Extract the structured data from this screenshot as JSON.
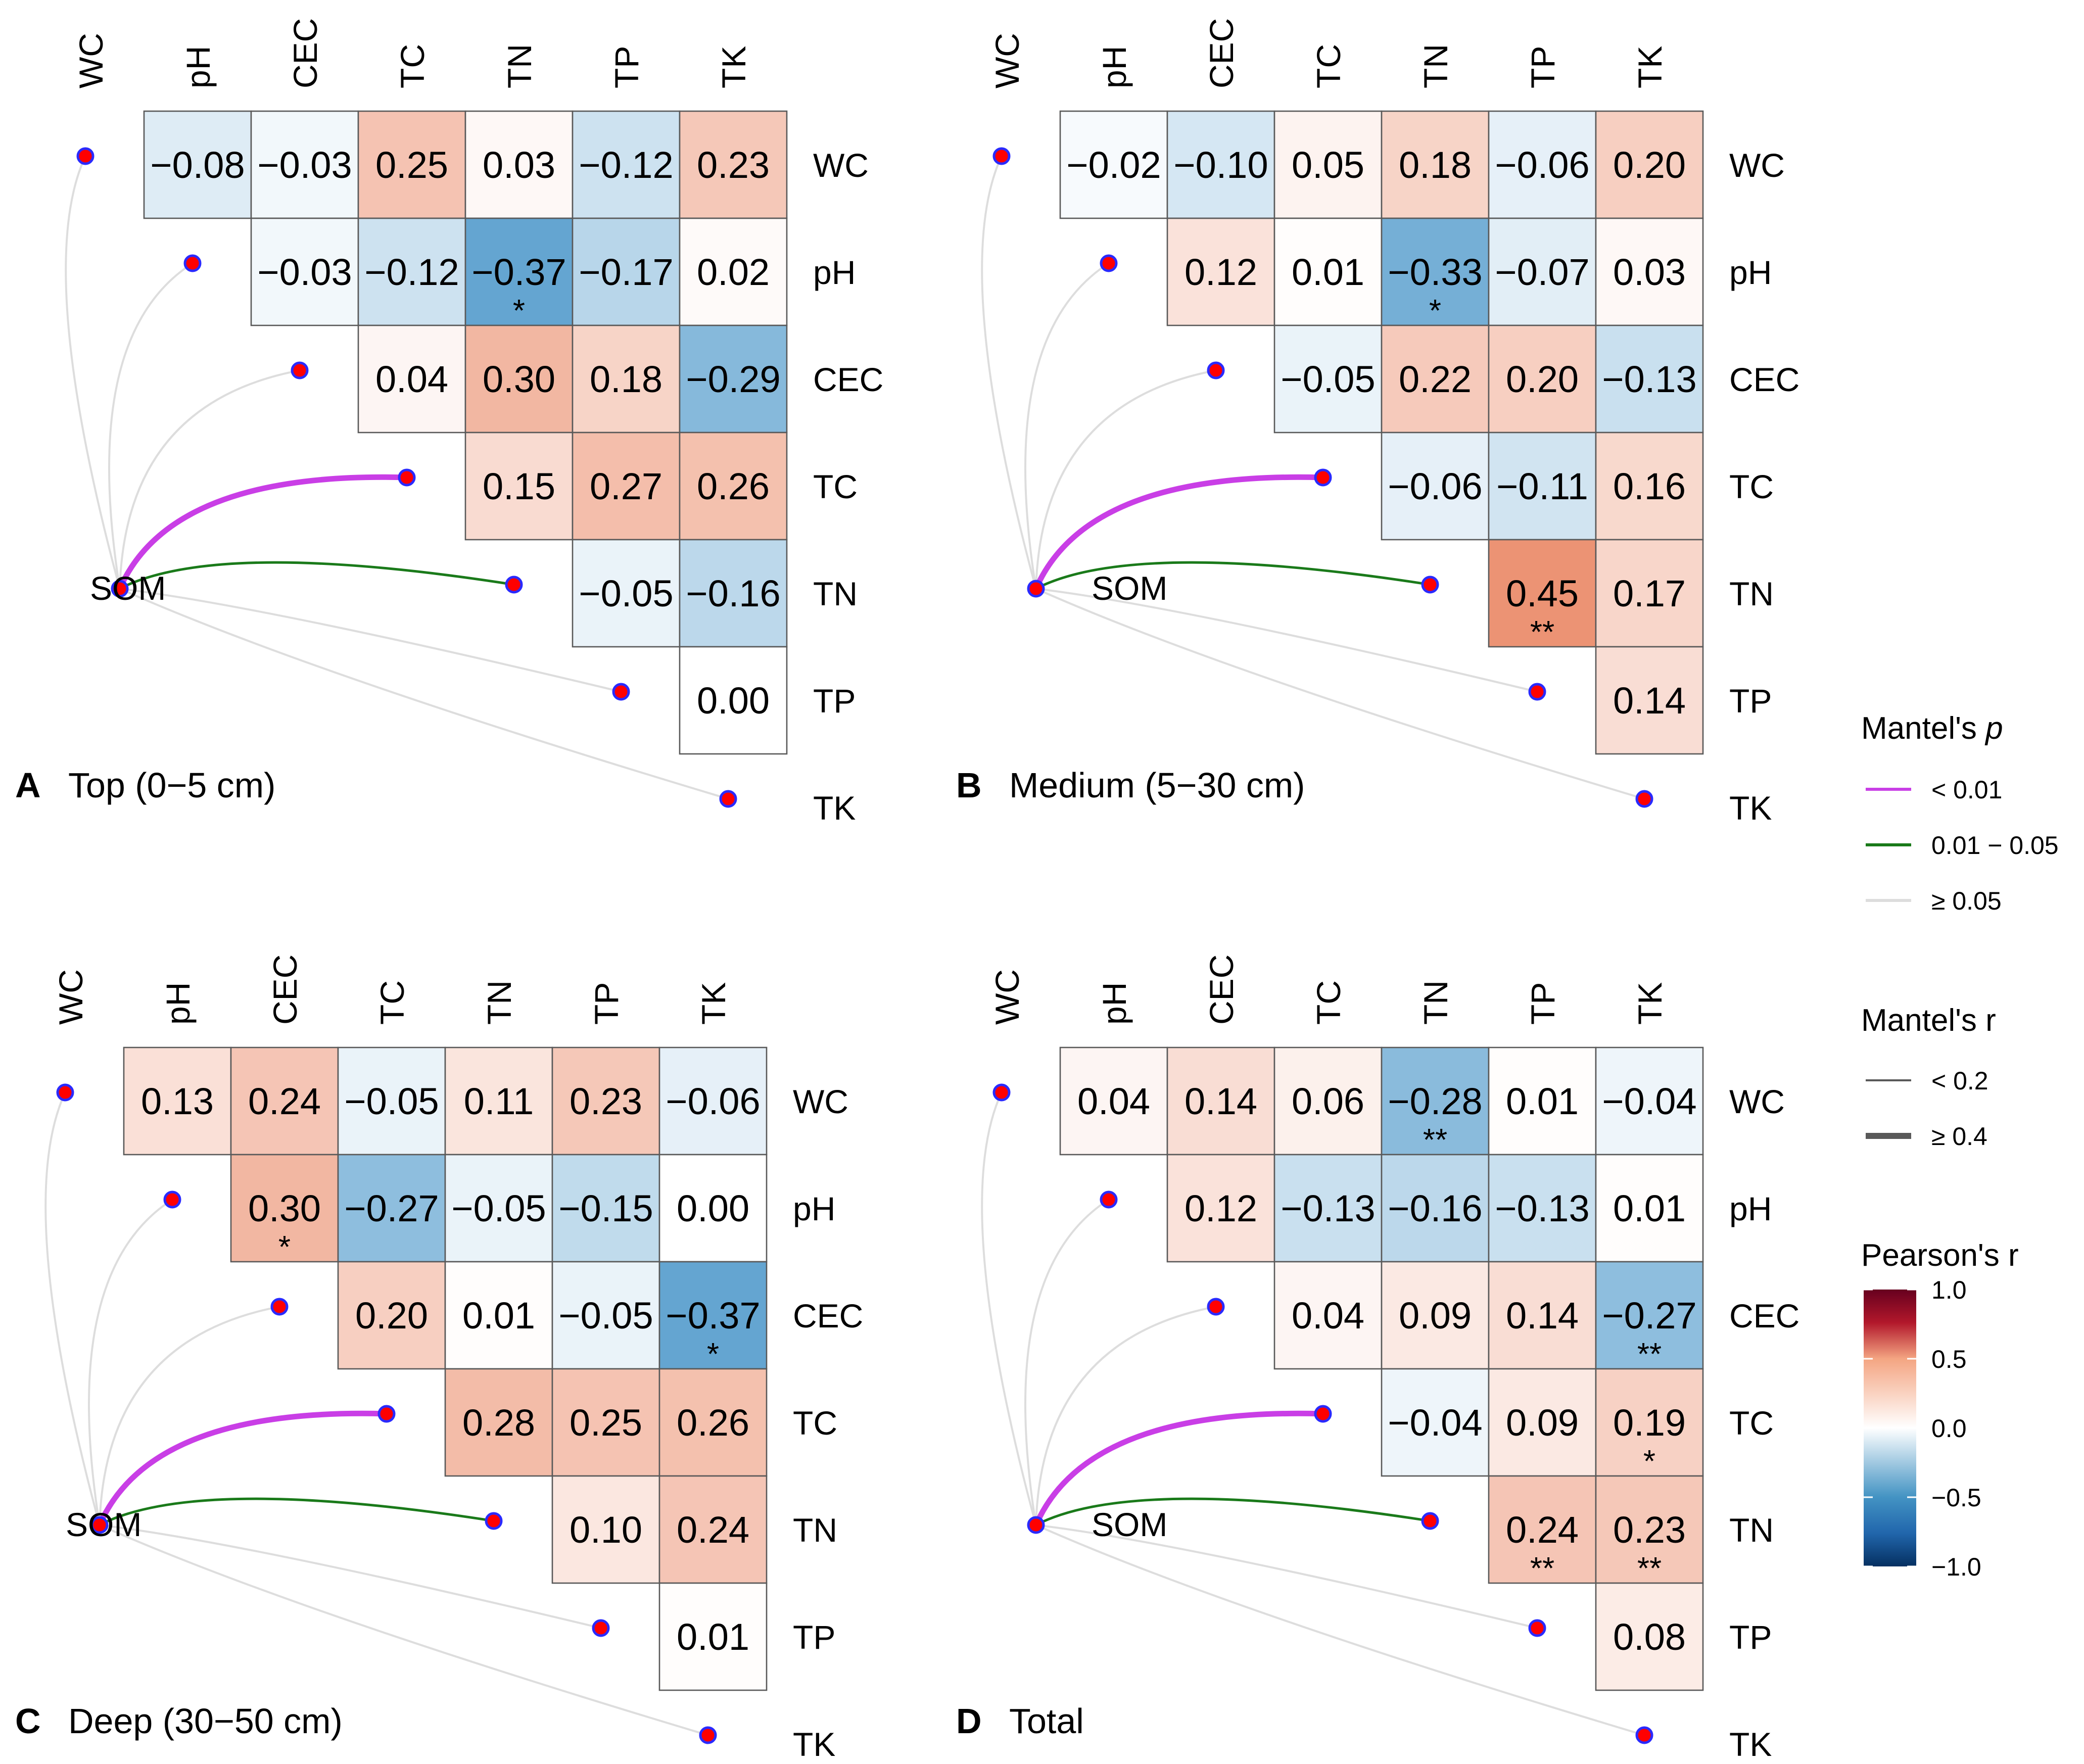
{
  "variables": [
    "WC",
    "pH",
    "CEC",
    "TC",
    "TN",
    "TP",
    "TK"
  ],
  "som_label": "SOM",
  "mantel_p_colors": {
    "lt_0.01": "#c93ee6",
    "0.01_0.05": "#1a7a1a",
    "ge_0.05": "#dddddd"
  },
  "chart_data": [
    {
      "type": "heatmap",
      "panel": "A",
      "title": "Top (0−5 cm)",
      "matrix": [
        [
          "−0.08",
          "−0.03",
          "0.25",
          "0.03",
          "−0.12",
          "0.23"
        ],
        [
          "−0.03",
          "−0.12",
          "−0.37",
          "−0.17",
          "0.02"
        ],
        [
          "0.04",
          "0.30",
          "0.18",
          "−0.29"
        ],
        [
          "0.15",
          "0.27",
          "0.26"
        ],
        [
          "−0.05",
          "−0.16"
        ],
        [
          "0.00"
        ]
      ],
      "stars": [
        [
          "",
          "",
          "",
          "",
          "",
          ""
        ],
        [
          "",
          "",
          "*",
          "",
          ""
        ],
        [
          "",
          "",
          "",
          ""
        ],
        [
          "",
          "",
          ""
        ],
        [
          "",
          ""
        ],
        [
          ""
        ]
      ],
      "mantel": [
        "gray",
        "gray",
        "gray",
        "purple",
        "green",
        "gray",
        "gray"
      ]
    },
    {
      "type": "heatmap",
      "panel": "B",
      "title": "Medium (5−30 cm)",
      "matrix": [
        [
          "−0.02",
          "−0.10",
          "0.05",
          "0.18",
          "−0.06",
          "0.20"
        ],
        [
          "0.12",
          "0.01",
          "−0.33",
          "−0.07",
          "0.03"
        ],
        [
          "−0.05",
          "0.22",
          "0.20",
          "−0.13"
        ],
        [
          "−0.06",
          "−0.11",
          "0.16"
        ],
        [
          "0.45",
          "0.17"
        ],
        [
          "0.14"
        ]
      ],
      "stars": [
        [
          "",
          "",
          "",
          "",
          "",
          ""
        ],
        [
          "",
          "",
          "*",
          "",
          ""
        ],
        [
          "",
          "",
          "",
          ""
        ],
        [
          "",
          "",
          ""
        ],
        [
          "**",
          ""
        ],
        [
          ""
        ]
      ],
      "mantel": [
        "gray",
        "gray",
        "gray",
        "purple",
        "green",
        "gray",
        "gray"
      ]
    },
    {
      "type": "heatmap",
      "panel": "C",
      "title": "Deep (30−50 cm)",
      "matrix": [
        [
          "0.13",
          "0.24",
          "−0.05",
          "0.11",
          "0.23",
          "−0.06"
        ],
        [
          "0.30",
          "−0.27",
          "−0.05",
          "−0.15",
          "0.00"
        ],
        [
          "0.20",
          "0.01",
          "−0.05",
          "−0.37"
        ],
        [
          "0.28",
          "0.25",
          "0.26"
        ],
        [
          "0.10",
          "0.24"
        ],
        [
          "0.01"
        ]
      ],
      "stars": [
        [
          "",
          "",
          "",
          "",
          "",
          ""
        ],
        [
          "*",
          "",
          "",
          "",
          ""
        ],
        [
          "",
          "",
          "",
          "*"
        ],
        [
          "",
          "",
          ""
        ],
        [
          "",
          ""
        ],
        [
          ""
        ]
      ],
      "mantel": [
        "gray",
        "gray",
        "gray",
        "purple",
        "green",
        "gray",
        "gray"
      ]
    },
    {
      "type": "heatmap",
      "panel": "D",
      "title": "Total",
      "matrix": [
        [
          "0.04",
          "0.14",
          "0.06",
          "−0.28",
          "0.01",
          "−0.04"
        ],
        [
          "0.12",
          "−0.13",
          "−0.16",
          "−0.13",
          "0.01"
        ],
        [
          "0.04",
          "0.09",
          "0.14",
          "−0.27"
        ],
        [
          "−0.04",
          "0.09",
          "0.19"
        ],
        [
          "0.24",
          "0.23"
        ],
        [
          "0.08"
        ]
      ],
      "stars": [
        [
          "",
          "",
          "",
          "**",
          "",
          ""
        ],
        [
          "",
          "",
          "",
          "",
          ""
        ],
        [
          "",
          "",
          "",
          "**"
        ],
        [
          "",
          "",
          "*"
        ],
        [
          "**",
          "**"
        ],
        [
          ""
        ]
      ],
      "mantel": [
        "gray",
        "gray",
        "gray",
        "purple",
        "green",
        "gray",
        "gray"
      ]
    }
  ],
  "legend": {
    "mantel_p_title": "Mantel's p",
    "mantel_p_items": [
      "< 0.01",
      "0.01 − 0.05",
      "≥ 0.05"
    ],
    "mantel_r_title": "Mantel's r",
    "mantel_r_items": [
      "< 0.2",
      "≥ 0.4"
    ],
    "pearson_title": "Pearson's r",
    "pearson_ticks": [
      "1.0",
      "0.5",
      "0.0",
      "−0.5",
      "−1.0"
    ]
  }
}
